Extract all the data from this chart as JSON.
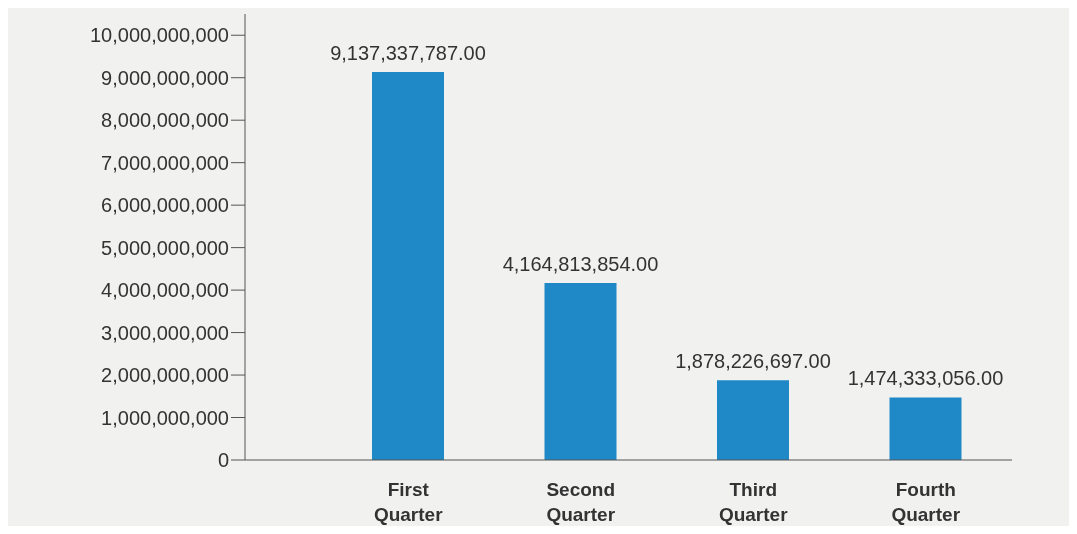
{
  "chart_data": {
    "type": "bar",
    "categories": [
      "First Quarter",
      "Second Quarter",
      "Third Quarter",
      "Fourth Quarter"
    ],
    "values": [
      9137337787,
      4164813854,
      1878226697,
      1474333056
    ],
    "value_labels": [
      "9,137,337,787.00",
      "4,164,813,854.00",
      "1,878,226,697.00",
      "1,474,333,056.00"
    ],
    "color": "#1f88c6",
    "ylim": [
      0,
      10500000000
    ],
    "yticks": [
      0,
      {
        "value": 1000000000,
        "label": "1,000,000,000"
      },
      {
        "value": 2000000000,
        "label": "2,000,000,000"
      },
      {
        "value": 3000000000,
        "label": "3,000,000,000"
      },
      {
        "value": 4000000000,
        "label": "4,000,000,000"
      },
      {
        "value": 5000000000,
        "label": "5,000,000,000"
      },
      {
        "value": 6000000000,
        "label": "6,000,000,000"
      },
      {
        "value": 7000000000,
        "label": "7,000,000,000"
      },
      {
        "value": 8000000000,
        "label": "8,000,000,000"
      },
      {
        "value": 9000000000,
        "label": "9,000,000,000"
      },
      {
        "value": 10000000000,
        "label": "10,000,000,000"
      }
    ],
    "grid": false,
    "legend": false
  }
}
